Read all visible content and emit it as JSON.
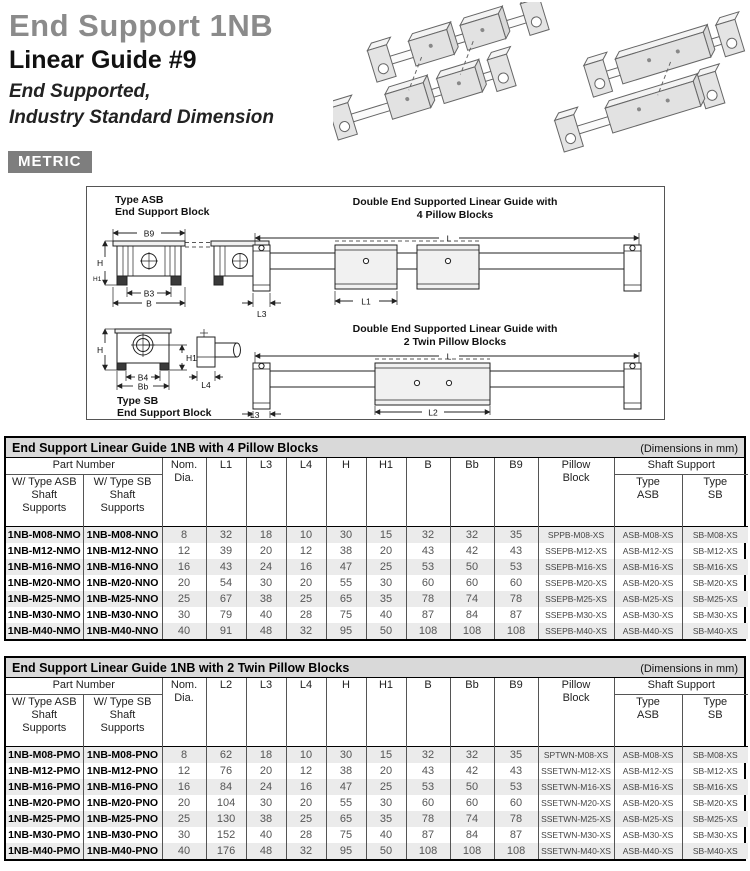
{
  "header": {
    "title": "End Support 1NB",
    "subtitle": "Linear Guide #9",
    "tagline1": "End Supported,",
    "tagline2": "Industry Standard Dimension",
    "badge": "METRIC"
  },
  "diagram": {
    "asb_label1": "Type ASB",
    "asb_label2": "End Support Block",
    "sb_label1": "Type SB",
    "sb_label2": "End Support Block",
    "view1_title1": "Double End Supported Linear Guide with",
    "view1_title2": "4 Pillow Blocks",
    "view2_title1": "Double End Supported Linear Guide with",
    "view2_title2": "2 Twin Pillow Blocks",
    "labels": {
      "b9": "B9",
      "b3": "B3",
      "b": "B",
      "h": "H",
      "h1": "H1",
      "b4": "B4",
      "bb": "Bb",
      "l4": "L4",
      "l": "L",
      "l1": "L1",
      "l2": "L2",
      "l3": "L3"
    }
  },
  "table1": {
    "title": "End Support Linear Guide 1NB with 4 Pillow Blocks",
    "dims_note": "(Dimensions in mm)",
    "headers": {
      "part_number": "Part Number",
      "part_sub": [
        "W/ Type ASB\nShaft\nSupports",
        "W/ Type SB\nShaft\nSupports"
      ],
      "dims": [
        "Nom.\nDia.",
        "L1",
        "L3",
        "L4",
        "H",
        "H1",
        "B",
        "Bb",
        "B9"
      ],
      "pillow": "Pillow\nBlock",
      "shaft_support": "Shaft Support",
      "shaft_sub": [
        "Type\nASB",
        "Type\nSB"
      ]
    },
    "rows": [
      [
        "1NB-M08-NMO",
        "1NB-M08-NNO",
        "8",
        "32",
        "18",
        "10",
        "30",
        "15",
        "32",
        "32",
        "35",
        "SPPB-M08-XS",
        "ASB-M08-XS",
        "SB-M08-XS"
      ],
      [
        "1NB-M12-NMO",
        "1NB-M12-NNO",
        "12",
        "39",
        "20",
        "12",
        "38",
        "20",
        "43",
        "42",
        "43",
        "SSEPB-M12-XS",
        "ASB-M12-XS",
        "SB-M12-XS"
      ],
      [
        "1NB-M16-NMO",
        "1NB-M16-NNO",
        "16",
        "43",
        "24",
        "16",
        "47",
        "25",
        "53",
        "50",
        "53",
        "SSEPB-M16-XS",
        "ASB-M16-XS",
        "SB-M16-XS"
      ],
      [
        "1NB-M20-NMO",
        "1NB-M20-NNO",
        "20",
        "54",
        "30",
        "20",
        "55",
        "30",
        "60",
        "60",
        "60",
        "SSEPB-M20-XS",
        "ASB-M20-XS",
        "SB-M20-XS"
      ],
      [
        "1NB-M25-NMO",
        "1NB-M25-NNO",
        "25",
        "67",
        "38",
        "25",
        "65",
        "35",
        "78",
        "74",
        "78",
        "SSEPB-M25-XS",
        "ASB-M25-XS",
        "SB-M25-XS"
      ],
      [
        "1NB-M30-NMO",
        "1NB-M30-NNO",
        "30",
        "79",
        "40",
        "28",
        "75",
        "40",
        "87",
        "84",
        "87",
        "SSEPB-M30-XS",
        "ASB-M30-XS",
        "SB-M30-XS"
      ],
      [
        "1NB-M40-NMO",
        "1NB-M40-NNO",
        "40",
        "91",
        "48",
        "32",
        "95",
        "50",
        "108",
        "108",
        "108",
        "SSEPB-M40-XS",
        "ASB-M40-XS",
        "SB-M40-XS"
      ]
    ]
  },
  "table2": {
    "title": "End Support Linear Guide 1NB with 2 Twin Pillow Blocks",
    "dims_note": "(Dimensions in mm)",
    "headers": {
      "part_number": "Part Number",
      "part_sub": [
        "W/ Type ASB\nShaft\nSupports",
        "W/ Type SB\nShaft\nSupports"
      ],
      "dims": [
        "Nom.\nDia.",
        "L2",
        "L3",
        "L4",
        "H",
        "H1",
        "B",
        "Bb",
        "B9"
      ],
      "pillow": "Pillow\nBlock",
      "shaft_support": "Shaft Support",
      "shaft_sub": [
        "Type\nASB",
        "Type\nSB"
      ]
    },
    "rows": [
      [
        "1NB-M08-PMO",
        "1NB-M08-PNO",
        "8",
        "62",
        "18",
        "10",
        "30",
        "15",
        "32",
        "32",
        "35",
        "SPTWN-M08-XS",
        "ASB-M08-XS",
        "SB-M08-XS"
      ],
      [
        "1NB-M12-PMO",
        "1NB-M12-PNO",
        "12",
        "76",
        "20",
        "12",
        "38",
        "20",
        "43",
        "42",
        "43",
        "SSETWN-M12-XS",
        "ASB-M12-XS",
        "SB-M12-XS"
      ],
      [
        "1NB-M16-PMO",
        "1NB-M16-PNO",
        "16",
        "84",
        "24",
        "16",
        "47",
        "25",
        "53",
        "50",
        "53",
        "SSETWN-M16-XS",
        "ASB-M16-XS",
        "SB-M16-XS"
      ],
      [
        "1NB-M20-PMO",
        "1NB-M20-PNO",
        "20",
        "104",
        "30",
        "20",
        "55",
        "30",
        "60",
        "60",
        "60",
        "SSETWN-M20-XS",
        "ASB-M20-XS",
        "SB-M20-XS"
      ],
      [
        "1NB-M25-PMO",
        "1NB-M25-PNO",
        "25",
        "130",
        "38",
        "25",
        "65",
        "35",
        "78",
        "74",
        "78",
        "SSETWN-M25-XS",
        "ASB-M25-XS",
        "SB-M25-XS"
      ],
      [
        "1NB-M30-PMO",
        "1NB-M30-PNO",
        "30",
        "152",
        "40",
        "28",
        "75",
        "40",
        "87",
        "84",
        "87",
        "SSETWN-M30-XS",
        "ASB-M30-XS",
        "SB-M30-XS"
      ],
      [
        "1NB-M40-PMO",
        "1NB-M40-PNO",
        "40",
        "176",
        "48",
        "32",
        "95",
        "50",
        "108",
        "108",
        "108",
        "SSETWN-M40-XS",
        "ASB-M40-XS",
        "SB-M40-XS"
      ]
    ]
  }
}
